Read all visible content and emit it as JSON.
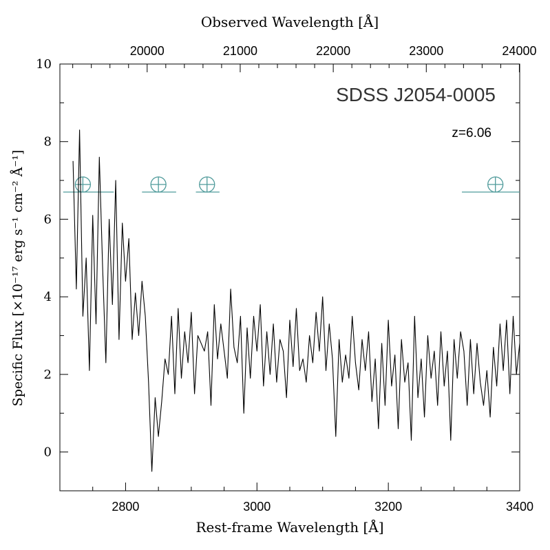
{
  "chart_data": {
    "type": "line",
    "title": "SDSS J2054-0005",
    "annotation": "z=6.06",
    "xlabel": "Rest-frame Wavelength [Å]",
    "x2label": "Observed Wavelength [Å]",
    "ylabel": "Specific Flux [×10⁻¹⁷ erg s⁻¹ cm⁻² Å⁻¹]",
    "xlim": [
      2700,
      3400
    ],
    "ylim": [
      -1,
      10
    ],
    "x2lim": [
      19062,
      24004
    ],
    "x_ticks": [
      2800,
      3000,
      3200,
      3400
    ],
    "x2_ticks": [
      20000,
      21000,
      22000,
      23000,
      24000
    ],
    "y_ticks": [
      0,
      2,
      4,
      6,
      8,
      10
    ],
    "series": [
      {
        "name": "spectrum",
        "x": [
          2720,
          2725,
          2730,
          2735,
          2740,
          2745,
          2750,
          2755,
          2760,
          2765,
          2770,
          2775,
          2780,
          2785,
          2790,
          2795,
          2800,
          2805,
          2810,
          2815,
          2820,
          2825,
          2830,
          2835,
          2840,
          2845,
          2850,
          2855,
          2860,
          2865,
          2870,
          2875,
          2880,
          2885,
          2890,
          2895,
          2900,
          2905,
          2910,
          2915,
          2920,
          2925,
          2930,
          2935,
          2940,
          2945,
          2950,
          2955,
          2960,
          2965,
          2970,
          2975,
          2980,
          2985,
          2990,
          2995,
          3000,
          3005,
          3010,
          3015,
          3020,
          3025,
          3030,
          3035,
          3040,
          3045,
          3050,
          3055,
          3060,
          3065,
          3070,
          3075,
          3080,
          3085,
          3090,
          3095,
          3100,
          3105,
          3110,
          3115,
          3120,
          3125,
          3130,
          3135,
          3140,
          3145,
          3150,
          3155,
          3160,
          3165,
          3170,
          3175,
          3180,
          3185,
          3190,
          3195,
          3200,
          3205,
          3210,
          3215,
          3220,
          3225,
          3230,
          3235,
          3240,
          3245,
          3250,
          3255,
          3260,
          3265,
          3270,
          3275,
          3280,
          3285,
          3290,
          3295,
          3300,
          3305,
          3310,
          3315,
          3320,
          3325,
          3330,
          3335,
          3340,
          3345,
          3350,
          3355,
          3360,
          3365,
          3370,
          3375,
          3380,
          3385,
          3390,
          3395,
          3400
        ],
        "values": [
          7.5,
          4.2,
          8.3,
          3.5,
          5.0,
          2.1,
          6.1,
          3.3,
          7.6,
          4.8,
          2.3,
          6.0,
          3.8,
          7.0,
          2.9,
          5.9,
          4.4,
          5.5,
          2.9,
          4.1,
          3.0,
          4.4,
          3.5,
          1.8,
          -0.5,
          1.4,
          0.4,
          1.3,
          2.4,
          2.0,
          3.5,
          1.5,
          3.7,
          1.9,
          3.1,
          2.3,
          3.6,
          1.5,
          3.0,
          2.8,
          2.6,
          3.1,
          1.2,
          3.8,
          2.4,
          3.3,
          2.6,
          1.9,
          4.2,
          2.7,
          2.3,
          3.5,
          1.0,
          3.2,
          1.9,
          3.5,
          2.6,
          3.8,
          1.7,
          3.1,
          2.0,
          3.3,
          1.8,
          2.9,
          2.6,
          1.4,
          3.4,
          2.2,
          3.7,
          2.1,
          2.4,
          1.8,
          3.0,
          2.3,
          3.6,
          2.6,
          4.0,
          2.1,
          3.3,
          2.4,
          0.4,
          2.9,
          1.8,
          2.5,
          1.9,
          3.5,
          2.3,
          1.6,
          2.9,
          2.1,
          3.1,
          1.3,
          2.4,
          0.6,
          2.8,
          1.2,
          3.4,
          1.7,
          2.5,
          0.6,
          2.9,
          1.8,
          2.3,
          0.3,
          3.5,
          1.4,
          2.4,
          0.9,
          3.0,
          1.9,
          2.6,
          1.2,
          3.1,
          1.7,
          2.6,
          0.3,
          2.9,
          1.9,
          3.1,
          2.6,
          1.2,
          2.9,
          1.5,
          2.8,
          1.8,
          1.2,
          2.1,
          0.9,
          2.7,
          1.7,
          3.3,
          2.1,
          3.4,
          1.5,
          3.5,
          2.0,
          2.8
        ]
      }
    ],
    "telluric_markers": [
      {
        "x": 2735,
        "x_start": 2705,
        "x_end": 2782
      },
      {
        "x": 2850,
        "x_start": 2825,
        "x_end": 2877
      },
      {
        "x": 2924,
        "x_start": 2907,
        "x_end": 2943
      },
      {
        "x": 3363,
        "x_start": 3312,
        "x_end": 3400
      }
    ],
    "telluric_level": 6.7,
    "colors": {
      "line": "#000000",
      "frame": "#000000",
      "telluric": "#4e9a9a"
    }
  }
}
